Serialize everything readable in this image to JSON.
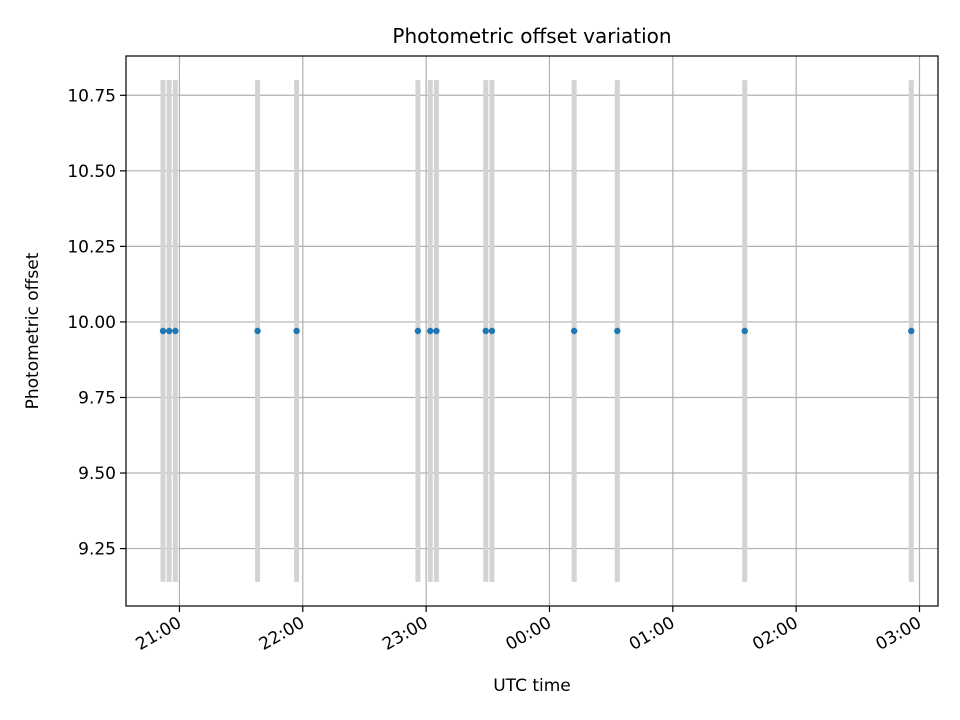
{
  "chart_data": {
    "type": "scatter",
    "title": "Photometric offset variation",
    "xlabel": "UTC time",
    "ylabel": "Photometric offset",
    "xlim": [
      "20:34",
      "03:09"
    ],
    "ylim": [
      9.06,
      10.88
    ],
    "x_day_rollover": "00:00",
    "grid": true,
    "xticks": [
      "21:00",
      "22:00",
      "23:00",
      "00:00",
      "01:00",
      "02:00",
      "03:00"
    ],
    "yticks": [
      "9.25",
      "9.50",
      "9.75",
      "10.00",
      "10.25",
      "10.50",
      "10.75"
    ],
    "series": [
      {
        "values_x": [
          "20:52",
          "20:55",
          "20:58",
          "21:38",
          "21:57",
          "22:56",
          "23:02",
          "23:05",
          "23:29",
          "23:32",
          "00:12",
          "00:33",
          "01:35",
          "02:56"
        ],
        "values_y": [
          9.97,
          9.97,
          9.97,
          9.97,
          9.97,
          9.97,
          9.97,
          9.97,
          9.97,
          9.97,
          9.97,
          9.97,
          9.97,
          9.97
        ],
        "error_low": [
          9.14,
          9.14,
          9.14,
          9.14,
          9.14,
          9.14,
          9.14,
          9.14,
          9.14,
          9.14,
          9.14,
          9.14,
          9.14,
          9.14
        ],
        "error_high": [
          10.8,
          10.8,
          10.8,
          10.8,
          10.8,
          10.8,
          10.8,
          10.8,
          10.8,
          10.8,
          10.8,
          10.8,
          10.8,
          10.8
        ],
        "color": "#1f77b4",
        "errorbar_color": "#d3d3d3"
      }
    ]
  }
}
